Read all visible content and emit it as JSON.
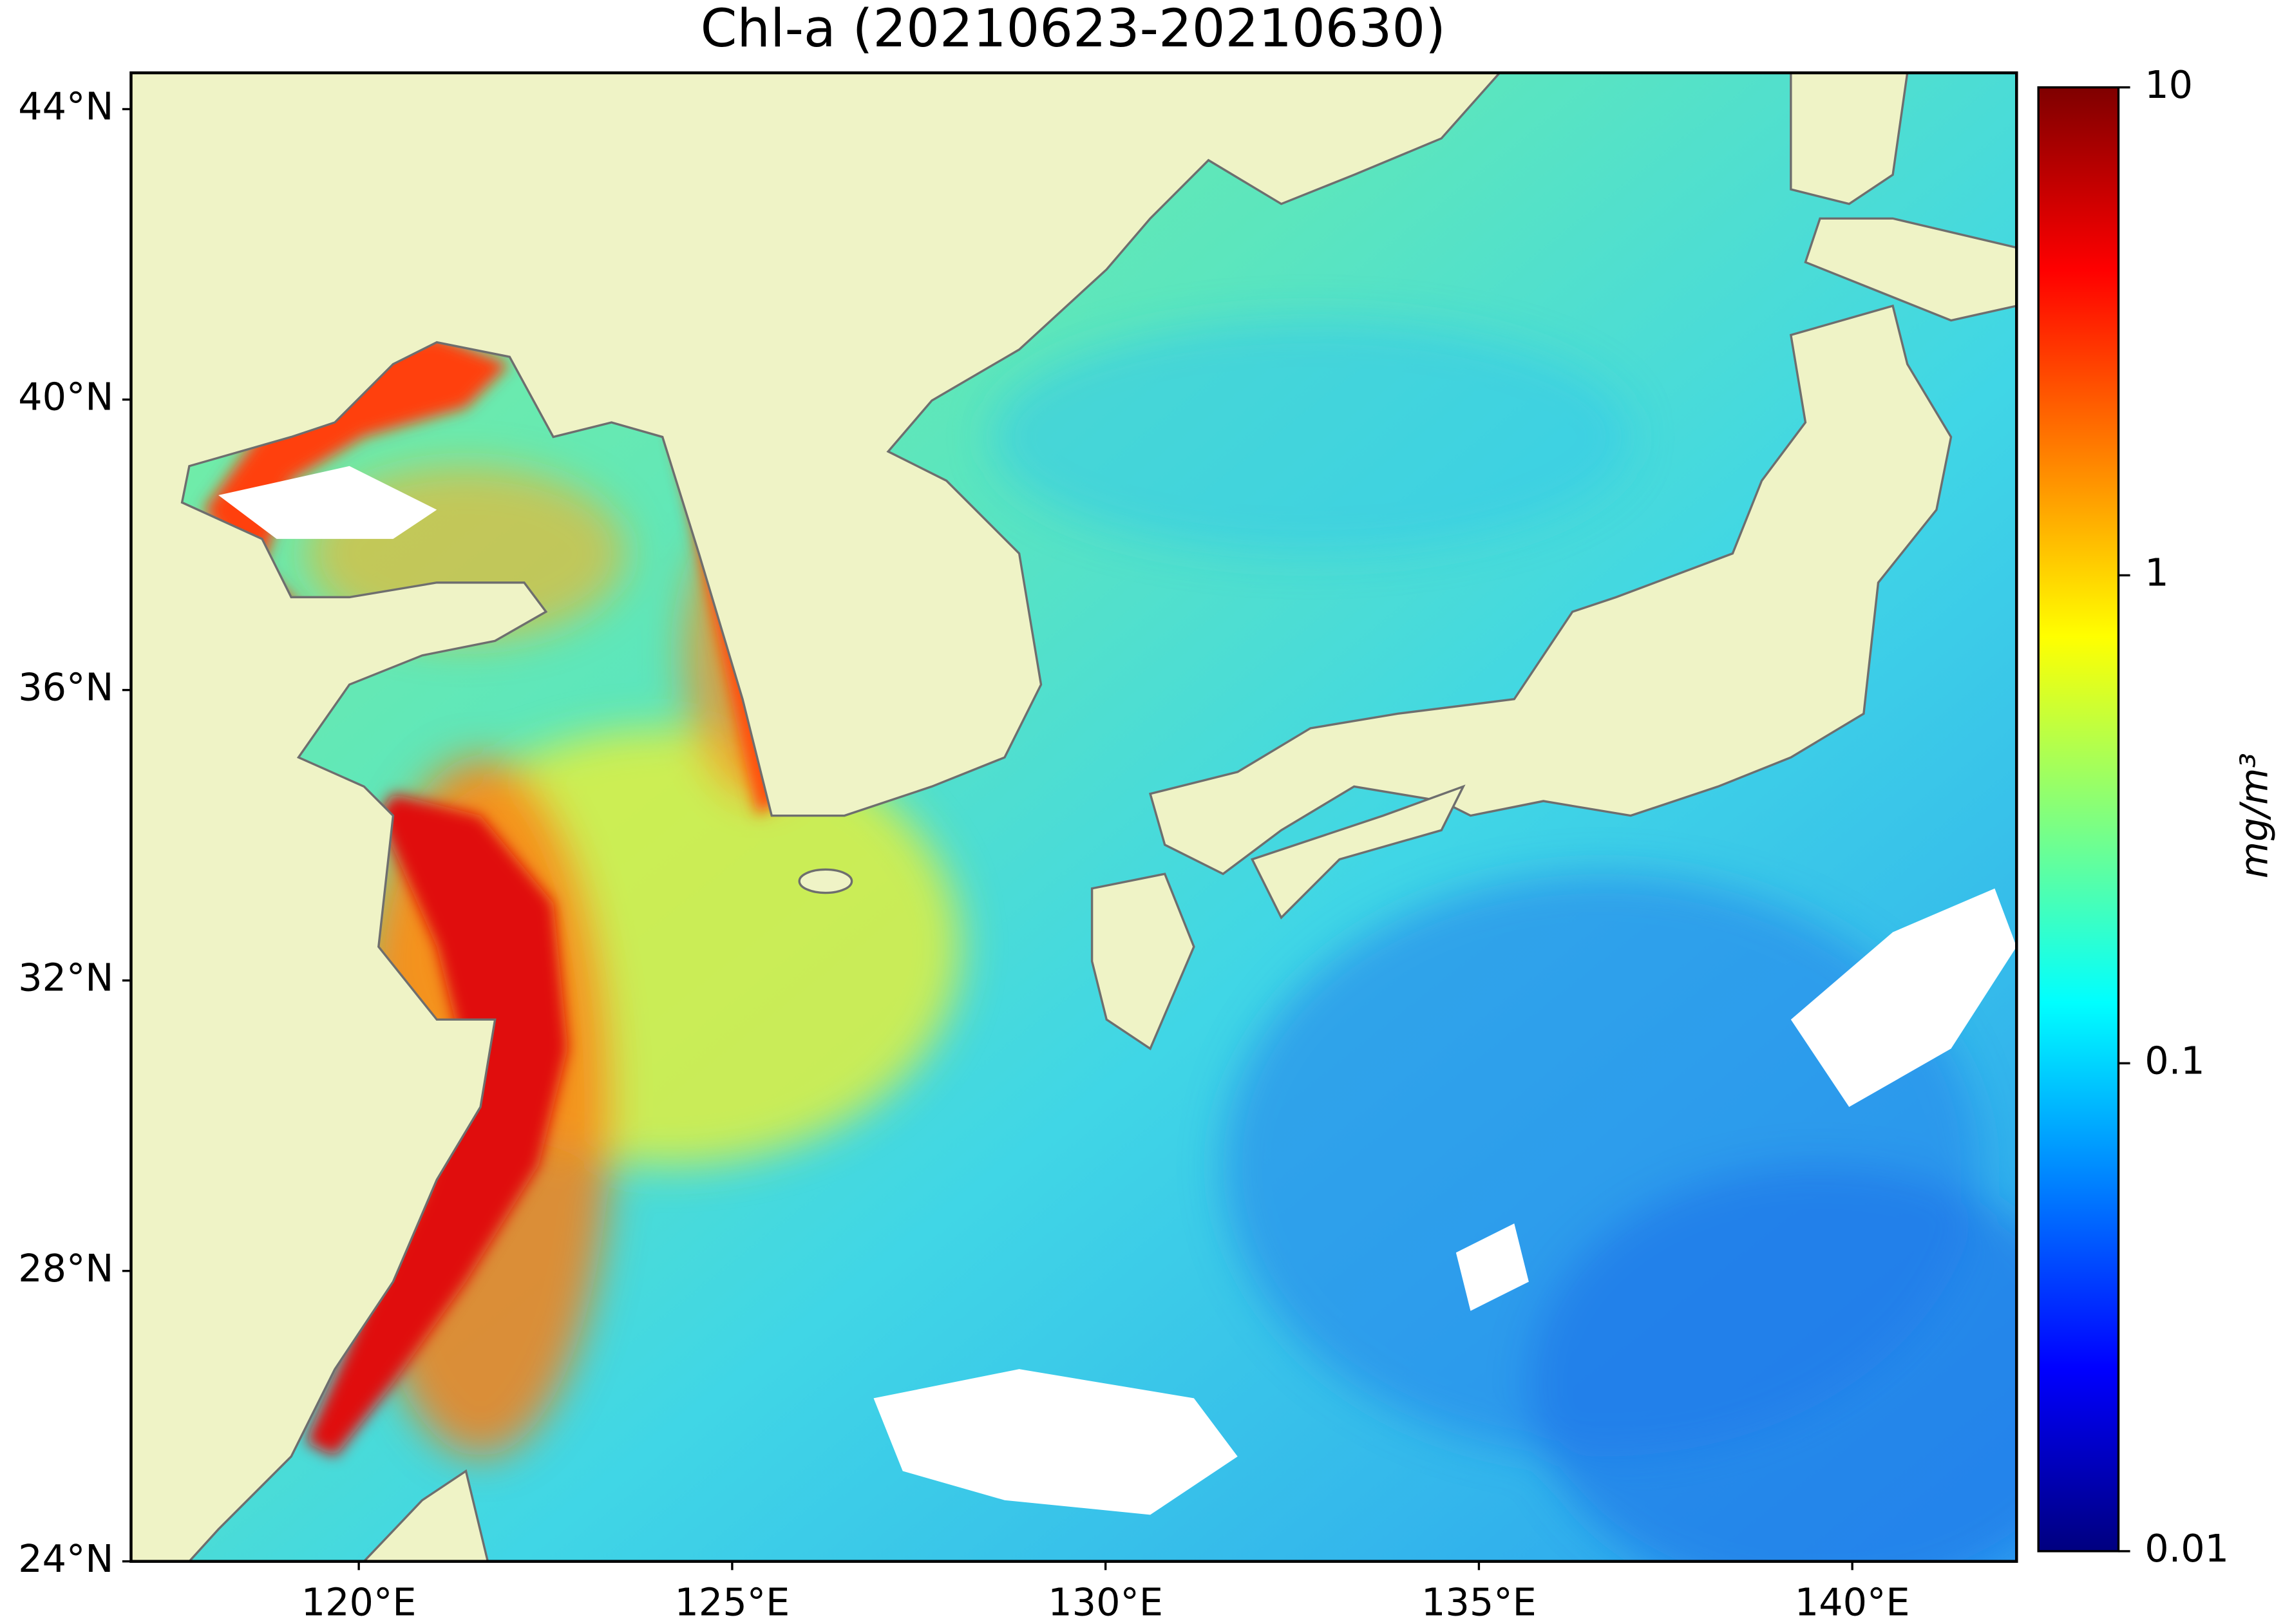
{
  "map": {
    "title": "Chl-a (20210623-20210630)",
    "lon_lim": [
      116.95,
      142.2
    ],
    "lat_lim": [
      24,
      44.5
    ],
    "lat_ticks": [
      {
        "value": 44,
        "label": "44°N"
      },
      {
        "value": 40,
        "label": "40°N"
      },
      {
        "value": 36,
        "label": "36°N"
      },
      {
        "value": 32,
        "label": "32°N"
      },
      {
        "value": 28,
        "label": "28°N"
      },
      {
        "value": 24,
        "label": "24°N"
      }
    ],
    "lon_ticks": [
      {
        "value": 120,
        "label": "120°E"
      },
      {
        "value": 125,
        "label": "125°E"
      },
      {
        "value": 130,
        "label": "130°E"
      },
      {
        "value": 135,
        "label": "135°E"
      },
      {
        "value": 140,
        "label": "140°E"
      }
    ],
    "colorbar": {
      "label": "mg/m³",
      "scale": "log",
      "lim": [
        0.01,
        10
      ],
      "ticks": [
        10,
        1,
        0.1,
        0.01
      ]
    }
  }
}
